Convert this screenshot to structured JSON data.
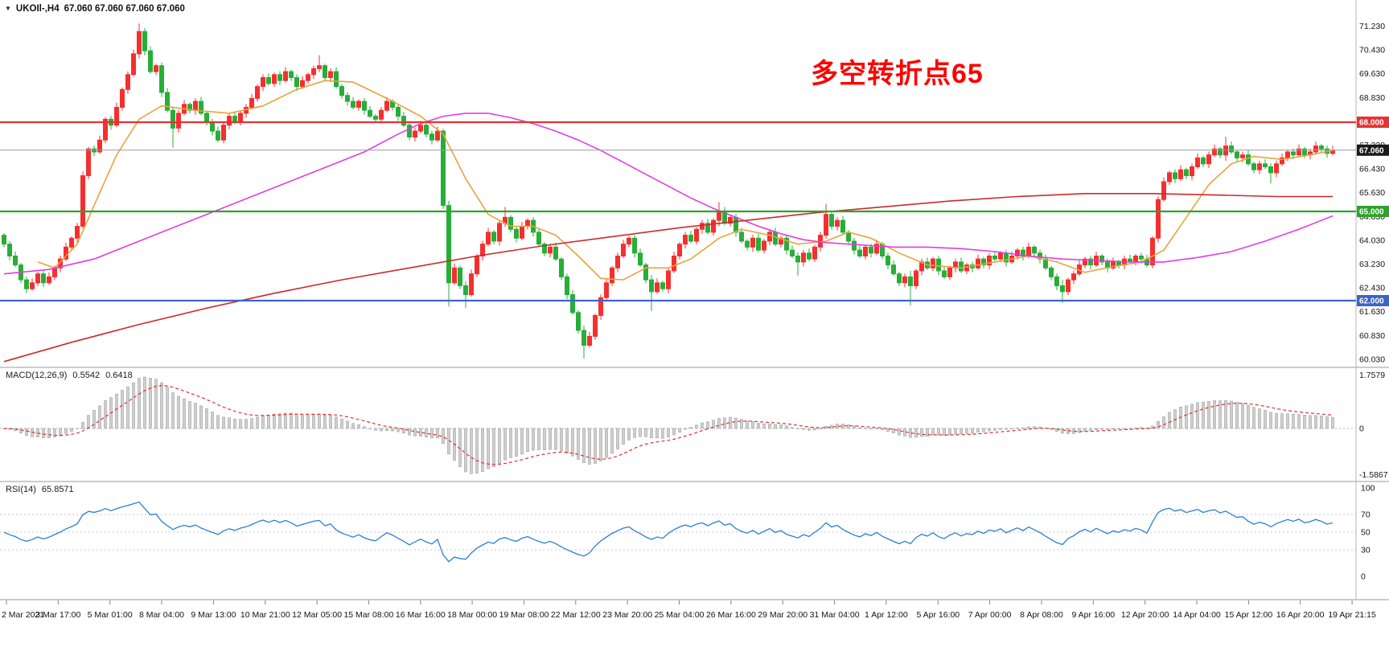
{
  "header": {
    "symbol_period": "UKOIl-,H4",
    "ohlc": "67.060 67.060 67.060 67.060"
  },
  "annotation": {
    "text": "多空转折点65",
    "color": "#ff0000"
  },
  "chart_data": {
    "type": "candlestick",
    "symbol": "UKOIl-",
    "timeframe": "H4",
    "current_price": 67.06,
    "colors": {
      "bull": "#f52f2f",
      "bear": "#27ae38",
      "ma_fast": "#e8a33d",
      "ma_mid": "#e33ce3",
      "ma_slow": "#cc2a2a",
      "hist": "#cfcfcf",
      "hist_edge": "#909090",
      "signal": "#e03030",
      "rsi_line": "#2a7fd4",
      "price_line": "#9b9b9b"
    },
    "price_axis": {
      "ticks": [
        "71.230",
        "70.430",
        "69.630",
        "68.830",
        "67.230",
        "66.430",
        "65.630",
        "64.830",
        "64.030",
        "63.230",
        "62.430",
        "61.630",
        "60.830",
        "60.030"
      ],
      "badges": [
        {
          "value": "68.000",
          "color": "#e83232"
        },
        {
          "value": "67.060",
          "color": "#1a1a1a"
        },
        {
          "value": "65.000",
          "color": "#2ea22e"
        },
        {
          "value": "62.000",
          "color": "#3c64c8"
        }
      ]
    },
    "hlines": [
      {
        "price": 68.0,
        "color": "#e83232",
        "label": "68.000"
      },
      {
        "price": 65.0,
        "color": "#2ea22e",
        "label": "65.000"
      },
      {
        "price": 62.0,
        "color": "#3c64c8",
        "label": "62.000"
      }
    ],
    "candles": {
      "first_open": 64.2,
      "closes": [
        63.9,
        63.5,
        63.2,
        62.7,
        62.4,
        62.6,
        62.9,
        62.6,
        62.8,
        63.1,
        63.4,
        63.8,
        64.1,
        64.5,
        66.2,
        67.1,
        67.0,
        67.4,
        68.1,
        67.9,
        68.5,
        69.1,
        69.6,
        70.3,
        71.05,
        70.4,
        69.7,
        69.9,
        69.0,
        68.4,
        67.8,
        68.3,
        68.6,
        68.4,
        68.7,
        68.3,
        68.0,
        67.7,
        67.4,
        67.9,
        68.2,
        68.0,
        68.3,
        68.5,
        68.8,
        69.2,
        69.5,
        69.3,
        69.6,
        69.4,
        69.7,
        69.5,
        69.2,
        69.4,
        69.6,
        69.8,
        69.9,
        69.5,
        69.7,
        69.2,
        68.9,
        68.7,
        68.5,
        68.7,
        68.4,
        68.2,
        68.1,
        68.4,
        68.7,
        68.5,
        68.2,
        67.9,
        67.5,
        67.7,
        67.9,
        67.6,
        67.4,
        67.7,
        65.2,
        62.6,
        63.1,
        62.5,
        62.2,
        62.9,
        63.5,
        63.9,
        64.3,
        64.0,
        64.6,
        64.8,
        64.4,
        64.1,
        64.5,
        64.7,
        64.3,
        63.9,
        63.6,
        63.8,
        63.4,
        62.8,
        62.2,
        61.6,
        61.0,
        60.5,
        60.8,
        61.5,
        62.1,
        62.6,
        63.1,
        63.5,
        63.9,
        64.1,
        63.6,
        63.2,
        62.7,
        62.3,
        62.6,
        62.4,
        63.0,
        63.5,
        63.9,
        64.2,
        64.0,
        64.4,
        64.6,
        64.3,
        64.7,
        65.0,
        64.6,
        64.8,
        64.3,
        64.0,
        63.8,
        64.1,
        63.7,
        64.0,
        64.3,
        63.9,
        64.1,
        63.7,
        63.5,
        63.3,
        63.6,
        63.4,
        63.8,
        64.2,
        64.9,
        64.5,
        64.7,
        64.3,
        64.0,
        63.7,
        63.5,
        63.8,
        63.6,
        63.9,
        63.5,
        63.2,
        62.9,
        62.6,
        62.8,
        62.5,
        63.0,
        63.3,
        63.1,
        63.4,
        63.0,
        62.8,
        63.1,
        63.3,
        63.0,
        63.2,
        63.1,
        63.4,
        63.2,
        63.5,
        63.4,
        63.6,
        63.3,
        63.5,
        63.7,
        63.5,
        63.8,
        63.6,
        63.4,
        63.1,
        62.8,
        62.5,
        62.3,
        62.7,
        62.9,
        63.2,
        63.4,
        63.2,
        63.5,
        63.3,
        63.1,
        63.3,
        63.2,
        63.4,
        63.3,
        63.5,
        63.4,
        63.2,
        64.1,
        65.4,
        66.0,
        66.3,
        66.1,
        66.4,
        66.2,
        66.5,
        66.8,
        66.6,
        66.9,
        67.1,
        66.9,
        67.2,
        67.0,
        66.8,
        66.9,
        66.6,
        66.4,
        66.6,
        66.5,
        66.3,
        66.6,
        66.8,
        67.0,
        66.9,
        67.1,
        66.9,
        67.0,
        67.2,
        67.1,
        66.95,
        67.06
      ],
      "wick_overrides": {
        "24": [
          0.2,
          0.05
        ],
        "30": [
          0.05,
          0.55
        ],
        "56": [
          0.2,
          0.05
        ],
        "79": [
          0.05,
          0.65
        ],
        "82": [
          0.05,
          0.3
        ],
        "89": [
          0.2,
          0.05
        ],
        "103": [
          0.05,
          0.3
        ],
        "115": [
          0.05,
          0.5
        ],
        "127": [
          0.2,
          0.05
        ],
        "141": [
          0.05,
          0.35
        ],
        "146": [
          0.2,
          0.05
        ],
        "161": [
          0.05,
          0.6
        ],
        "188": [
          0.05,
          0.3
        ],
        "217": [
          0.2,
          0.05
        ],
        "225": [
          0.05,
          0.25
        ]
      }
    },
    "moving_averages": [
      {
        "name": "fast",
        "color": "#e8a33d",
        "points": [
          [
            6,
            63.3
          ],
          [
            9,
            63.1
          ],
          [
            13,
            63.9
          ],
          [
            16,
            65.2
          ],
          [
            20,
            66.9
          ],
          [
            24,
            68.1
          ],
          [
            28,
            68.55
          ],
          [
            34,
            68.4
          ],
          [
            40,
            68.3
          ],
          [
            46,
            68.55
          ],
          [
            52,
            69.1
          ],
          [
            57,
            69.4
          ],
          [
            62,
            69.35
          ],
          [
            68,
            68.8
          ],
          [
            74,
            68.2
          ],
          [
            78,
            67.6
          ],
          [
            82,
            66.1
          ],
          [
            86,
            64.9
          ],
          [
            90,
            64.5
          ],
          [
            94,
            64.5
          ],
          [
            98,
            64.2
          ],
          [
            102,
            63.5
          ],
          [
            106,
            62.75
          ],
          [
            110,
            62.7
          ],
          [
            114,
            63.1
          ],
          [
            118,
            63.1
          ],
          [
            122,
            63.4
          ],
          [
            127,
            64.1
          ],
          [
            131,
            64.4
          ],
          [
            136,
            64.2
          ],
          [
            141,
            63.9
          ],
          [
            146,
            64.0
          ],
          [
            150,
            64.3
          ],
          [
            154,
            64.1
          ],
          [
            159,
            63.6
          ],
          [
            164,
            63.2
          ],
          [
            170,
            63.1
          ],
          [
            176,
            63.3
          ],
          [
            182,
            63.5
          ],
          [
            187,
            63.3
          ],
          [
            192,
            62.95
          ],
          [
            197,
            63.15
          ],
          [
            202,
            63.3
          ],
          [
            206,
            63.7
          ],
          [
            210,
            64.8
          ],
          [
            214,
            65.9
          ],
          [
            218,
            66.6
          ],
          [
            222,
            66.85
          ],
          [
            227,
            66.75
          ],
          [
            232,
            66.9
          ],
          [
            236,
            67.05
          ]
        ]
      },
      {
        "name": "mid",
        "color": "#e33ce3",
        "points": [
          [
            0,
            62.9
          ],
          [
            8,
            63.05
          ],
          [
            16,
            63.4
          ],
          [
            24,
            64.0
          ],
          [
            32,
            64.6
          ],
          [
            40,
            65.2
          ],
          [
            48,
            65.8
          ],
          [
            56,
            66.4
          ],
          [
            64,
            67.0
          ],
          [
            70,
            67.6
          ],
          [
            74,
            67.95
          ],
          [
            78,
            68.2
          ],
          [
            82,
            68.3
          ],
          [
            86,
            68.3
          ],
          [
            90,
            68.15
          ],
          [
            94,
            67.95
          ],
          [
            98,
            67.7
          ],
          [
            102,
            67.4
          ],
          [
            106,
            67.05
          ],
          [
            110,
            66.65
          ],
          [
            114,
            66.25
          ],
          [
            118,
            65.85
          ],
          [
            122,
            65.45
          ],
          [
            126,
            65.1
          ],
          [
            130,
            64.8
          ],
          [
            134,
            64.5
          ],
          [
            138,
            64.25
          ],
          [
            142,
            64.05
          ],
          [
            146,
            63.95
          ],
          [
            150,
            63.9
          ],
          [
            154,
            63.85
          ],
          [
            158,
            63.8
          ],
          [
            164,
            63.8
          ],
          [
            170,
            63.75
          ],
          [
            176,
            63.65
          ],
          [
            182,
            63.5
          ],
          [
            188,
            63.4
          ],
          [
            194,
            63.35
          ],
          [
            200,
            63.3
          ],
          [
            206,
            63.3
          ],
          [
            212,
            63.45
          ],
          [
            218,
            63.65
          ],
          [
            224,
            64.0
          ],
          [
            230,
            64.4
          ],
          [
            236,
            64.85
          ]
        ]
      },
      {
        "name": "slow",
        "color": "#cc2a2a",
        "points": [
          [
            0,
            59.95
          ],
          [
            12,
            60.6
          ],
          [
            24,
            61.2
          ],
          [
            36,
            61.75
          ],
          [
            48,
            62.25
          ],
          [
            60,
            62.7
          ],
          [
            72,
            63.1
          ],
          [
            84,
            63.5
          ],
          [
            96,
            63.85
          ],
          [
            108,
            64.15
          ],
          [
            120,
            64.45
          ],
          [
            132,
            64.7
          ],
          [
            144,
            64.95
          ],
          [
            156,
            65.15
          ],
          [
            168,
            65.35
          ],
          [
            180,
            65.5
          ],
          [
            192,
            65.6
          ],
          [
            204,
            65.6
          ],
          [
            216,
            65.55
          ],
          [
            226,
            65.5
          ],
          [
            236,
            65.5
          ]
        ]
      }
    ],
    "macd": {
      "label": "MACD(12,26,9)",
      "value_hist": "0.5542",
      "value_signal": "0.6418",
      "params": [
        12,
        26,
        9
      ],
      "axis": [
        "1.7579",
        "0",
        "-1.5867"
      ]
    },
    "rsi": {
      "label": "RSI(14)",
      "value": "65.8571",
      "period": 14,
      "axis": [
        "100",
        "70",
        "50",
        "30",
        "0"
      ],
      "levels": [
        70,
        50,
        30
      ]
    },
    "time_axis": [
      "2 Mar 2021",
      "3 Mar 17:00",
      "5 Mar 01:00",
      "8 Mar 04:00",
      "9 Mar 13:00",
      "10 Mar 21:00",
      "12 Mar 05:00",
      "15 Mar 08:00",
      "16 Mar 16:00",
      "18 Mar 00:00",
      "19 Mar 08:00",
      "22 Mar 12:00",
      "23 Mar 20:00",
      "25 Mar 04:00",
      "26 Mar 16:00",
      "29 Mar 20:00",
      "31 Mar 04:00",
      "1 Apr 12:00",
      "5 Apr 16:00",
      "7 Apr 00:00",
      "8 Apr 08:00",
      "9 Apr 16:00",
      "12 Apr 20:00",
      "14 Apr 04:00",
      "15 Apr 12:00",
      "16 Apr 20:00",
      "19 Apr 21:15"
    ]
  }
}
